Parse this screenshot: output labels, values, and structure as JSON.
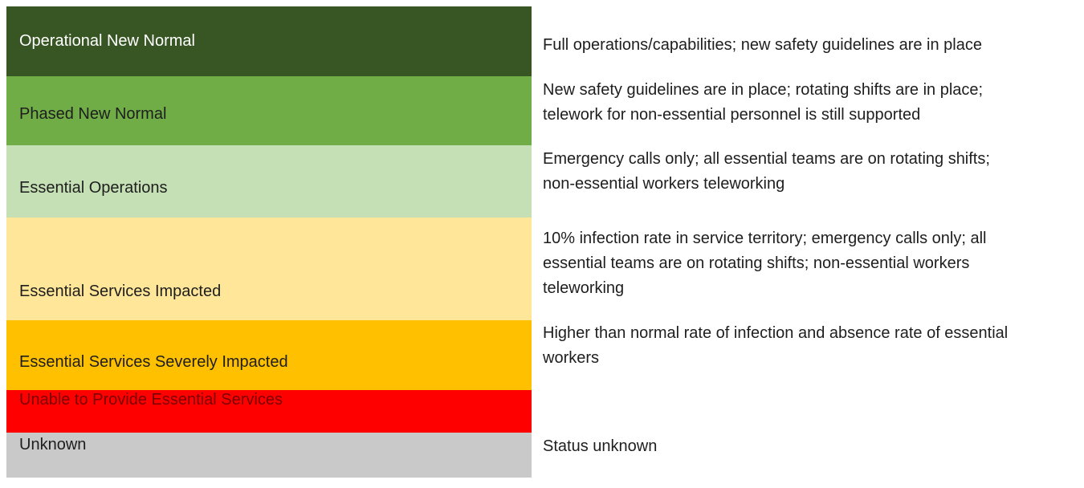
{
  "levels": [
    {
      "label": "Operational New Normal",
      "color": "#375623",
      "description": "Full operations/capabilities; new safety guidelines are in place"
    },
    {
      "label": "Phased New Normal",
      "color": "#70ad47",
      "description": "New safety guidelines are in place; rotating shifts are in place;\ntelework for non-essential personnel is still supported"
    },
    {
      "label": "Essential Operations",
      "color": "#c5e0b4",
      "description": "Emergency calls only; all essential teams are on rotating shifts;\nnon-essential workers teleworking"
    },
    {
      "label": "Essential Services Impacted",
      "color": "#ffe699",
      "description": "10% infection rate in service territory; emergency calls only; all\nessential teams are on rotating shifts; non-essential workers\nteleworking"
    },
    {
      "label": "Essential Services Severely Impacted",
      "color": "#ffc000",
      "description": "Higher than normal rate of infection and absence rate of essential\nworkers"
    },
    {
      "label": "Unable to Provide Essential Services",
      "color": "#ff0000",
      "description": ""
    },
    {
      "label": "Unknown",
      "color": "#c9c9c9",
      "description": "Status unknown"
    }
  ]
}
